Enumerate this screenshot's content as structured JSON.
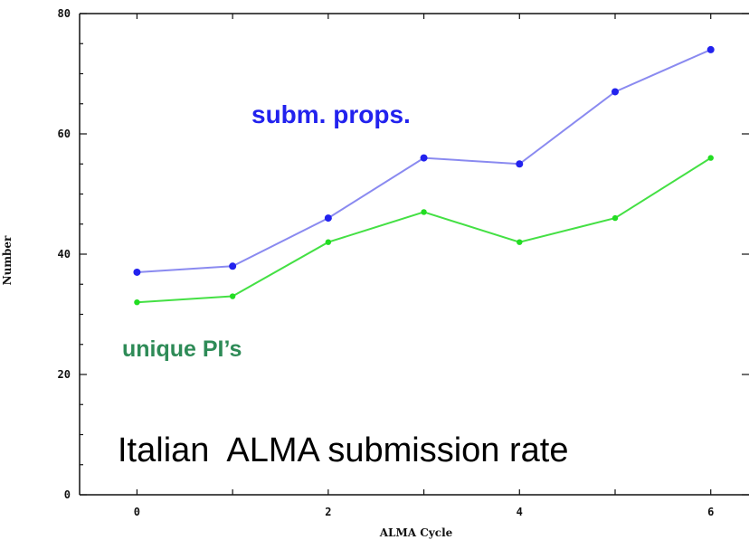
{
  "chart_data": {
    "type": "line",
    "xlabel": "ALMA Cycle",
    "ylabel": "Number",
    "xlim": [
      -0.6,
      6.4
    ],
    "ylim": [
      0,
      80
    ],
    "x_ticks": [
      0,
      2,
      4,
      6
    ],
    "y_ticks": [
      0,
      20,
      40,
      60,
      80
    ],
    "grid": false,
    "x": [
      0,
      1,
      2,
      3,
      4,
      5,
      6
    ],
    "series": [
      {
        "name": "subm. props.",
        "color": "#2222ee",
        "line_color": "#8a8af0",
        "values": [
          37,
          38,
          46,
          56,
          55,
          67,
          74
        ]
      },
      {
        "name": "unique PI’s",
        "color": "#22dd22",
        "line_color": "#44e044",
        "label_color": "#2e8b57",
        "values": [
          32,
          33,
          42,
          47,
          42,
          46,
          56
        ]
      }
    ],
    "annotation": "Italian  ALMA submission rate"
  }
}
